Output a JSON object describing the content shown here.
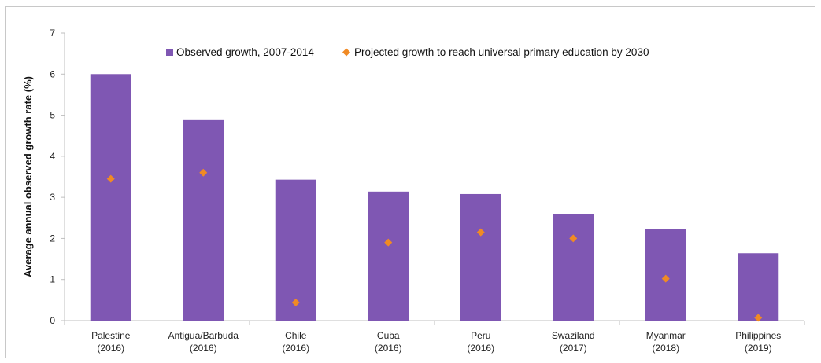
{
  "chart_data": {
    "type": "bar",
    "categories": [
      [
        "Palestine",
        "(2016)"
      ],
      [
        "Antigua/Barbuda",
        "(2016)"
      ],
      [
        "Chile",
        "(2016)"
      ],
      [
        "Cuba",
        "(2016)"
      ],
      [
        "Peru",
        "(2016)"
      ],
      [
        "Swaziland",
        "(2017)"
      ],
      [
        "Myanmar",
        "(2018)"
      ],
      [
        "Philippines",
        "(2019)"
      ]
    ],
    "series": [
      {
        "name": "Observed growth, 2007-2014",
        "kind": "bar",
        "color": "#7f57b3",
        "values": [
          6.0,
          4.88,
          3.43,
          3.14,
          3.08,
          2.59,
          2.22,
          1.64
        ]
      },
      {
        "name": "Projected growth to reach universal primary education by 2030",
        "kind": "marker",
        "marker": "diamond",
        "color": "#f08a24",
        "values": [
          3.45,
          3.6,
          0.44,
          1.9,
          2.15,
          2.0,
          1.02,
          0.07
        ]
      }
    ],
    "title": "",
    "xlabel": "",
    "ylabel": "Average annual observed growth rate (%)",
    "ylim": [
      0,
      7
    ],
    "yticks": [
      0,
      1,
      2,
      3,
      4,
      5,
      6,
      7
    ],
    "grid": false,
    "legend": "top-center"
  }
}
